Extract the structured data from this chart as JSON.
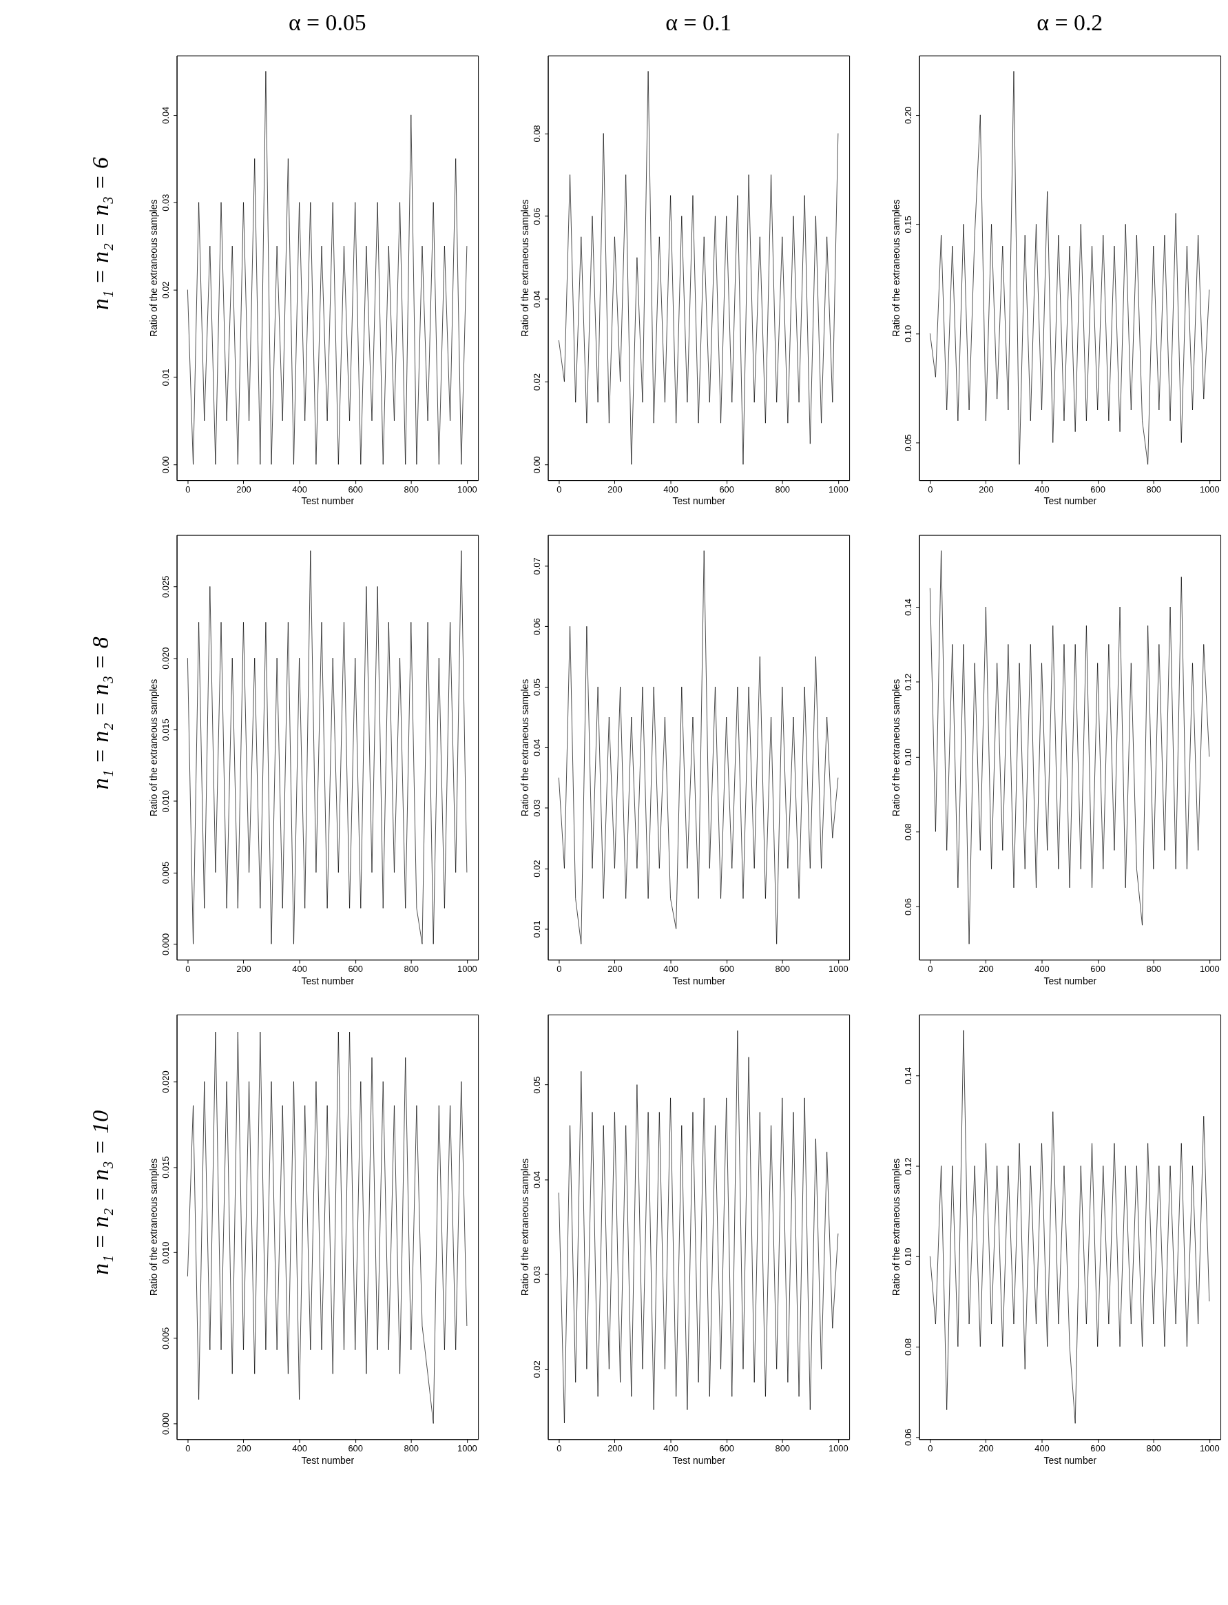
{
  "chart_data": [
    {
      "type": "line",
      "title": "α = 0.05",
      "annotations": [
        "n₁ = n₂ = n₃ = 6"
      ],
      "xlabel": "Test number",
      "ylabel": "Ratio of the extraneous samples",
      "grid": false,
      "xlim": [
        -39,
        1040
      ],
      "xticks": [
        0,
        200,
        400,
        600,
        800,
        1000
      ],
      "ylim": [
        -0.0018,
        0.0468
      ],
      "yticks": [
        {
          "value": 0,
          "label": "0.00"
        },
        0.01,
        0.02,
        0.03,
        0.04
      ],
      "x": [
        0,
        20,
        40,
        60,
        80,
        100,
        120,
        140,
        160,
        180,
        200,
        220,
        240,
        260,
        280,
        300,
        320,
        340,
        360,
        380,
        400,
        420,
        440,
        460,
        480,
        500,
        520,
        540,
        560,
        580,
        600,
        620,
        640,
        660,
        680,
        700,
        720,
        740,
        760,
        780,
        800,
        820,
        840,
        860,
        880,
        900,
        920,
        940,
        960,
        980,
        1000
      ],
      "series": [
        {
          "color": "#000000",
          "values": [
            0.02,
            0,
            0.03,
            0.005,
            0.025,
            0,
            0.03,
            0.005,
            0.025,
            0,
            0.03,
            0.005,
            0.035,
            0,
            0.045,
            0,
            0.025,
            0.005,
            0.035,
            0,
            0.03,
            0.005,
            0.03,
            0,
            0.025,
            0.005,
            0.03,
            0,
            0.025,
            0.005,
            0.03,
            0,
            0.025,
            0.005,
            0.03,
            0,
            0.025,
            0.005,
            0.03,
            0,
            0.04,
            0,
            0.025,
            0.005,
            0.03,
            0,
            0.025,
            0.005,
            0.035,
            0,
            0.025
          ]
        }
      ]
    },
    {
      "type": "line",
      "title": "α = 0.1",
      "xlabel": "Test number",
      "ylabel": "Ratio of the extraneous samples",
      "grid": false,
      "xlim": [
        -39,
        1040
      ],
      "xticks": [
        0,
        200,
        400,
        600,
        800,
        1000
      ],
      "ylim": [
        -0.0038,
        0.0988
      ],
      "yticks": [
        {
          "value": 0,
          "label": "0.00"
        },
        0.02,
        0.04,
        0.06,
        0.08
      ],
      "x": [
        0,
        20,
        40,
        60,
        80,
        100,
        120,
        140,
        160,
        180,
        200,
        220,
        240,
        260,
        280,
        300,
        320,
        340,
        360,
        380,
        400,
        420,
        440,
        460,
        480,
        500,
        520,
        540,
        560,
        580,
        600,
        620,
        640,
        660,
        680,
        700,
        720,
        740,
        760,
        780,
        800,
        820,
        840,
        860,
        880,
        900,
        920,
        940,
        960,
        980,
        1000
      ],
      "series": [
        {
          "color": "#000000",
          "values": [
            0.03,
            0.02,
            0.07,
            0.015,
            0.055,
            0.01,
            0.06,
            0.015,
            0.08,
            0.01,
            0.055,
            0.02,
            0.07,
            0.0,
            0.05,
            0.015,
            0.095,
            0.01,
            0.055,
            0.015,
            0.065,
            0.01,
            0.06,
            0.015,
            0.065,
            0.01,
            0.055,
            0.015,
            0.06,
            0.01,
            0.06,
            0.015,
            0.065,
            0.0,
            0.07,
            0.015,
            0.055,
            0.01,
            0.07,
            0.015,
            0.055,
            0.01,
            0.06,
            0.015,
            0.065,
            0.005,
            0.06,
            0.01,
            0.055,
            0.015,
            0.08
          ]
        }
      ]
    },
    {
      "type": "line",
      "title": "α = 0.2",
      "xlabel": "Test number",
      "ylabel": "Ratio of the extraneous samples",
      "grid": false,
      "xlim": [
        -39,
        1040
      ],
      "xticks": [
        0,
        200,
        400,
        600,
        800,
        1000
      ],
      "ylim": [
        0.0328,
        0.2272
      ],
      "yticks": [
        0.05,
        {
          "value": 0.1,
          "label": "0.10"
        },
        0.15,
        {
          "value": 0.2,
          "label": "0.20"
        }
      ],
      "x": [
        0,
        20,
        40,
        60,
        80,
        100,
        120,
        140,
        160,
        180,
        200,
        220,
        240,
        260,
        280,
        300,
        320,
        340,
        360,
        380,
        400,
        420,
        440,
        460,
        480,
        500,
        520,
        540,
        560,
        580,
        600,
        620,
        640,
        660,
        680,
        700,
        720,
        740,
        760,
        780,
        800,
        820,
        840,
        860,
        880,
        900,
        920,
        940,
        960,
        980,
        1000
      ],
      "series": [
        {
          "color": "#000000",
          "values": [
            0.1,
            0.08,
            0.145,
            0.065,
            0.14,
            0.06,
            0.15,
            0.065,
            0.145,
            0.2,
            0.06,
            0.15,
            0.07,
            0.14,
            0.065,
            0.22,
            0.04,
            0.145,
            0.06,
            0.15,
            0.065,
            0.165,
            0.05,
            0.145,
            0.06,
            0.14,
            0.055,
            0.15,
            0.06,
            0.14,
            0.065,
            0.145,
            0.06,
            0.14,
            0.055,
            0.15,
            0.065,
            0.145,
            0.06,
            0.04,
            0.14,
            0.065,
            0.145,
            0.06,
            0.155,
            0.05,
            0.14,
            0.065,
            0.145,
            0.07,
            0.12
          ]
        }
      ]
    },
    {
      "type": "line",
      "annotations": [
        "n₁ = n₂ = n₃ = 8"
      ],
      "xlabel": "Test number",
      "ylabel": "Ratio of the extraneous samples",
      "grid": false,
      "xlim": [
        -39,
        1040
      ],
      "xticks": [
        0,
        200,
        400,
        600,
        800,
        1000
      ],
      "ylim": [
        -0.0011,
        0.0286
      ],
      "yticks": [
        {
          "value": 0,
          "label": "0.000"
        },
        0.005,
        {
          "value": 0.01,
          "label": "0.010"
        },
        0.015,
        {
          "value": 0.02,
          "label": "0.020"
        },
        0.025
      ],
      "x": [
        0,
        20,
        40,
        60,
        80,
        100,
        120,
        140,
        160,
        180,
        200,
        220,
        240,
        260,
        280,
        300,
        320,
        340,
        360,
        380,
        400,
        420,
        440,
        460,
        480,
        500,
        520,
        540,
        560,
        580,
        600,
        620,
        640,
        660,
        680,
        700,
        720,
        740,
        760,
        780,
        800,
        820,
        840,
        860,
        880,
        900,
        920,
        940,
        960,
        980,
        1000
      ],
      "series": [
        {
          "color": "#000000",
          "values": [
            0.02,
            0.0,
            0.0225,
            0.0025,
            0.025,
            0.005,
            0.0225,
            0.0025,
            0.02,
            0.0025,
            0.0225,
            0.005,
            0.02,
            0.0025,
            0.0225,
            0.0,
            0.02,
            0.0025,
            0.0225,
            0.0,
            0.02,
            0.0025,
            0.0275,
            0.005,
            0.0225,
            0.0025,
            0.02,
            0.005,
            0.0225,
            0.0025,
            0.02,
            0.0025,
            0.025,
            0.005,
            0.025,
            0.0025,
            0.0225,
            0.005,
            0.02,
            0.0025,
            0.0225,
            0.0025,
            0.0,
            0.0225,
            0.0,
            0.02,
            0.0025,
            0.0225,
            0.005,
            0.0275,
            0.005
          ]
        }
      ]
    },
    {
      "type": "line",
      "xlabel": "Test number",
      "ylabel": "Ratio of the extraneous samples",
      "grid": false,
      "xlim": [
        -39,
        1040
      ],
      "xticks": [
        0,
        200,
        400,
        600,
        800,
        1000
      ],
      "ylim": [
        0.0049,
        0.0751
      ],
      "yticks": [
        0.01,
        0.02,
        0.03,
        0.04,
        0.05,
        0.06,
        0.07
      ],
      "x": [
        0,
        20,
        40,
        60,
        80,
        100,
        120,
        140,
        160,
        180,
        200,
        220,
        240,
        260,
        280,
        300,
        320,
        340,
        360,
        380,
        400,
        420,
        440,
        460,
        480,
        500,
        520,
        540,
        560,
        580,
        600,
        620,
        640,
        660,
        680,
        700,
        720,
        740,
        760,
        780,
        800,
        820,
        840,
        860,
        880,
        900,
        920,
        940,
        960,
        980,
        1000
      ],
      "series": [
        {
          "color": "#000000",
          "values": [
            0.035,
            0.02,
            0.06,
            0.015,
            0.0075,
            0.06,
            0.02,
            0.05,
            0.015,
            0.045,
            0.02,
            0.05,
            0.015,
            0.045,
            0.02,
            0.05,
            0.015,
            0.05,
            0.02,
            0.045,
            0.015,
            0.01,
            0.05,
            0.02,
            0.045,
            0.015,
            0.0725,
            0.02,
            0.05,
            0.015,
            0.045,
            0.02,
            0.05,
            0.015,
            0.05,
            0.02,
            0.055,
            0.015,
            0.045,
            0.0075,
            0.05,
            0.02,
            0.045,
            0.015,
            0.05,
            0.02,
            0.055,
            0.02,
            0.045,
            0.025,
            0.035
          ]
        }
      ]
    },
    {
      "type": "line",
      "xlabel": "Test number",
      "ylabel": "Ratio of the extraneous samples",
      "grid": false,
      "xlim": [
        -39,
        1040
      ],
      "xticks": [
        0,
        200,
        400,
        600,
        800,
        1000
      ],
      "ylim": [
        0.0458,
        0.1592
      ],
      "yticks": [
        0.06,
        0.08,
        {
          "value": 0.1,
          "label": "0.10"
        },
        0.12,
        0.14
      ],
      "x": [
        0,
        20,
        40,
        60,
        80,
        100,
        120,
        140,
        160,
        180,
        200,
        220,
        240,
        260,
        280,
        300,
        320,
        340,
        360,
        380,
        400,
        420,
        440,
        460,
        480,
        500,
        520,
        540,
        560,
        580,
        600,
        620,
        640,
        660,
        680,
        700,
        720,
        740,
        760,
        780,
        800,
        820,
        840,
        860,
        880,
        900,
        920,
        940,
        960,
        980,
        1000
      ],
      "series": [
        {
          "color": "#000000",
          "values": [
            0.145,
            0.08,
            0.155,
            0.075,
            0.13,
            0.065,
            0.13,
            0.05,
            0.125,
            0.075,
            0.14,
            0.07,
            0.125,
            0.075,
            0.13,
            0.065,
            0.125,
            0.07,
            0.13,
            0.065,
            0.125,
            0.075,
            0.135,
            0.07,
            0.13,
            0.065,
            0.13,
            0.07,
            0.135,
            0.065,
            0.125,
            0.07,
            0.13,
            0.075,
            0.14,
            0.065,
            0.125,
            0.07,
            0.055,
            0.135,
            0.07,
            0.13,
            0.075,
            0.14,
            0.07,
            0.148,
            0.07,
            0.125,
            0.075,
            0.13,
            0.1
          ]
        }
      ]
    },
    {
      "type": "line",
      "annotations": [
        "n₁ = n₂ = n₃ = 10"
      ],
      "xlabel": "Test number",
      "ylabel": "Ratio of the extraneous samples",
      "grid": false,
      "xlim": [
        -39,
        1040
      ],
      "xticks": [
        0,
        200,
        400,
        600,
        800,
        1000
      ],
      "ylim": [
        -0.00092,
        0.02392
      ],
      "yticks": [
        {
          "value": 0,
          "label": "0.000"
        },
        0.005,
        {
          "value": 0.01,
          "label": "0.010"
        },
        0.015,
        {
          "value": 0.02,
          "label": "0.020"
        }
      ],
      "x": [
        0,
        20,
        40,
        60,
        80,
        100,
        120,
        140,
        160,
        180,
        200,
        220,
        240,
        260,
        280,
        300,
        320,
        340,
        360,
        380,
        400,
        420,
        440,
        460,
        480,
        500,
        520,
        540,
        560,
        580,
        600,
        620,
        640,
        660,
        680,
        700,
        720,
        740,
        760,
        780,
        800,
        820,
        840,
        860,
        880,
        900,
        920,
        940,
        960,
        980,
        1000
      ],
      "series": [
        {
          "color": "#000000",
          "values": [
            0.0086,
            0.0186,
            0.0014,
            0.02,
            0.0043,
            0.0229,
            0.0043,
            0.02,
            0.0029,
            0.0229,
            0.0043,
            0.02,
            0.0029,
            0.0229,
            0.0043,
            0.02,
            0.0043,
            0.0186,
            0.0029,
            0.02,
            0.0014,
            0.0186,
            0.0043,
            0.02,
            0.0043,
            0.0186,
            0.0029,
            0.0229,
            0.0043,
            0.0229,
            0.0043,
            0.02,
            0.0029,
            0.0214,
            0.0043,
            0.02,
            0.0043,
            0.0186,
            0.0029,
            0.0214,
            0.0043,
            0.0186,
            0.0057,
            0.0029,
            0.0,
            0.0186,
            0.0043,
            0.0186,
            0.0043,
            0.02,
            0.0057
          ]
        }
      ]
    },
    {
      "type": "line",
      "xlabel": "Test number",
      "ylabel": "Ratio of the extraneous samples",
      "grid": false,
      "xlim": [
        -39,
        1040
      ],
      "xticks": [
        0,
        200,
        400,
        600,
        800,
        1000
      ],
      "ylim": [
        0.0126,
        0.0574
      ],
      "yticks": [
        0.02,
        0.03,
        0.04,
        0.05
      ],
      "x": [
        0,
        20,
        40,
        60,
        80,
        100,
        120,
        140,
        160,
        180,
        200,
        220,
        240,
        260,
        280,
        300,
        320,
        340,
        360,
        380,
        400,
        420,
        440,
        460,
        480,
        500,
        520,
        540,
        560,
        580,
        600,
        620,
        640,
        660,
        680,
        700,
        720,
        740,
        760,
        780,
        800,
        820,
        840,
        860,
        880,
        900,
        920,
        940,
        960,
        980,
        1000
      ],
      "series": [
        {
          "color": "#000000",
          "values": [
            0.0386,
            0.0143,
            0.0457,
            0.0186,
            0.0514,
            0.02,
            0.0471,
            0.0171,
            0.0457,
            0.02,
            0.0471,
            0.0186,
            0.0457,
            0.0171,
            0.05,
            0.02,
            0.0471,
            0.0157,
            0.0471,
            0.02,
            0.0486,
            0.0171,
            0.0457,
            0.0157,
            0.0471,
            0.0186,
            0.0486,
            0.0171,
            0.0457,
            0.02,
            0.0486,
            0.0171,
            0.0557,
            0.02,
            0.0529,
            0.0186,
            0.0471,
            0.0171,
            0.0457,
            0.02,
            0.0486,
            0.0186,
            0.0471,
            0.0171,
            0.0486,
            0.0157,
            0.0443,
            0.02,
            0.0429,
            0.0243,
            0.0343
          ]
        }
      ]
    },
    {
      "type": "line",
      "xlabel": "Test number",
      "ylabel": "Ratio of the extraneous samples",
      "grid": false,
      "xlim": [
        -39,
        1040
      ],
      "xticks": [
        0,
        200,
        400,
        600,
        800,
        1000
      ],
      "ylim": [
        0.0595,
        0.1535
      ],
      "yticks": [
        0.06,
        0.08,
        {
          "value": 0.1,
          "label": "0.10"
        },
        0.12,
        0.14
      ],
      "x": [
        0,
        20,
        40,
        60,
        80,
        100,
        120,
        140,
        160,
        180,
        200,
        220,
        240,
        260,
        280,
        300,
        320,
        340,
        360,
        380,
        400,
        420,
        440,
        460,
        480,
        500,
        520,
        540,
        560,
        580,
        600,
        620,
        640,
        660,
        680,
        700,
        720,
        740,
        760,
        780,
        800,
        820,
        840,
        860,
        880,
        900,
        920,
        940,
        960,
        980,
        1000
      ],
      "series": [
        {
          "color": "#000000",
          "values": [
            0.1,
            0.085,
            0.12,
            0.066,
            0.12,
            0.08,
            0.15,
            0.085,
            0.12,
            0.08,
            0.125,
            0.085,
            0.12,
            0.08,
            0.12,
            0.085,
            0.125,
            0.075,
            0.12,
            0.085,
            0.125,
            0.08,
            0.132,
            0.085,
            0.12,
            0.08,
            0.063,
            0.12,
            0.085,
            0.125,
            0.08,
            0.12,
            0.085,
            0.125,
            0.08,
            0.12,
            0.085,
            0.12,
            0.08,
            0.125,
            0.085,
            0.12,
            0.08,
            0.12,
            0.085,
            0.125,
            0.08,
            0.12,
            0.085,
            0.131,
            0.09
          ]
        }
      ]
    }
  ]
}
